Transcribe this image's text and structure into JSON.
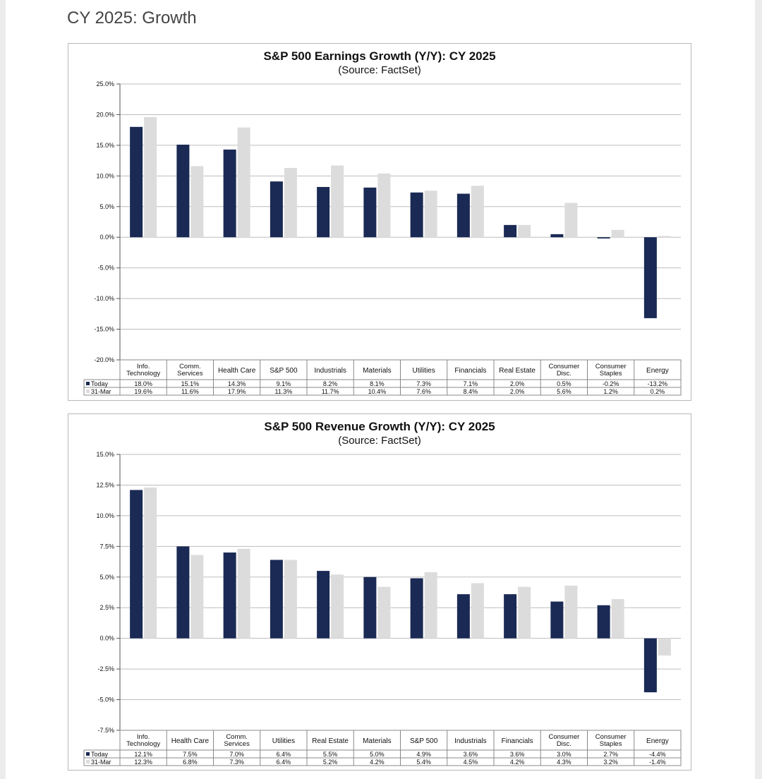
{
  "page": {
    "title": "CY 2025: Growth"
  },
  "colors": {
    "today": "#1a2a55",
    "prior": "#dcdcdc",
    "grid": "#bdbdbd",
    "text": "#111111"
  },
  "chart_data": [
    {
      "type": "bar",
      "title": "S&P 500 Earnings Growth (Y/Y): CY 2025",
      "subtitle": "(Source: FactSet)",
      "categories": [
        [
          "Info.",
          "Technology"
        ],
        [
          "Comm.",
          "Services"
        ],
        [
          "Health Care"
        ],
        [
          "S&P 500"
        ],
        [
          "Industrials"
        ],
        [
          "Materials"
        ],
        [
          "Utilities"
        ],
        [
          "Financials"
        ],
        [
          "Real Estate"
        ],
        [
          "Consumer",
          "Disc."
        ],
        [
          "Consumer",
          "Staples"
        ],
        [
          "Energy"
        ]
      ],
      "series": [
        {
          "name": "Today",
          "values": [
            18.0,
            15.1,
            14.3,
            9.1,
            8.2,
            8.1,
            7.3,
            7.1,
            2.0,
            0.5,
            -0.2,
            -13.2
          ],
          "labels": [
            "18.0%",
            "15.1%",
            "14.3%",
            "9.1%",
            "8.2%",
            "8.1%",
            "7.3%",
            "7.1%",
            "2.0%",
            "0.5%",
            "-0.2%",
            "-13.2%"
          ]
        },
        {
          "name": "31-Mar",
          "values": [
            19.6,
            11.6,
            17.9,
            11.3,
            11.7,
            10.4,
            7.6,
            8.4,
            2.0,
            5.6,
            1.2,
            0.2
          ],
          "labels": [
            "19.6%",
            "11.6%",
            "17.9%",
            "11.3%",
            "11.7%",
            "10.4%",
            "7.6%",
            "8.4%",
            "2.0%",
            "5.6%",
            "1.2%",
            "0.2%"
          ]
        }
      ],
      "ylim": [
        -20,
        25
      ],
      "yticks": [
        25,
        20,
        15,
        10,
        5,
        0,
        -5,
        -10,
        -15,
        -20
      ],
      "ytick_labels": [
        "25.0%",
        "20.0%",
        "15.0%",
        "10.0%",
        "5.0%",
        "0.0%",
        "-5.0%",
        "-10.0%",
        "-15.0%",
        "-20.0%"
      ],
      "grid": true,
      "legend": "data-table-left"
    },
    {
      "type": "bar",
      "title": "S&P 500 Revenue Growth (Y/Y): CY 2025",
      "subtitle": "(Source: FactSet)",
      "categories": [
        [
          "Info.",
          "Technology"
        ],
        [
          "Health Care"
        ],
        [
          "Comm.",
          "Services"
        ],
        [
          "Utilities"
        ],
        [
          "Real Estate"
        ],
        [
          "Materials"
        ],
        [
          "S&P 500"
        ],
        [
          "Industrials"
        ],
        [
          "Financials"
        ],
        [
          "Consumer",
          "Disc."
        ],
        [
          "Consumer",
          "Staples"
        ],
        [
          "Energy"
        ]
      ],
      "series": [
        {
          "name": "Today",
          "values": [
            12.1,
            7.5,
            7.0,
            6.4,
            5.5,
            5.0,
            4.9,
            3.6,
            3.6,
            3.0,
            2.7,
            -4.4
          ],
          "labels": [
            "12.1%",
            "7.5%",
            "7.0%",
            "6.4%",
            "5.5%",
            "5.0%",
            "4.9%",
            "3.6%",
            "3.6%",
            "3.0%",
            "2.7%",
            "-4.4%"
          ]
        },
        {
          "name": "31-Mar",
          "values": [
            12.3,
            6.8,
            7.3,
            6.4,
            5.2,
            4.2,
            5.4,
            4.5,
            4.2,
            4.3,
            3.2,
            -1.4
          ],
          "labels": [
            "12.3%",
            "6.8%",
            "7.3%",
            "6.4%",
            "5.2%",
            "4.2%",
            "5.4%",
            "4.5%",
            "4.2%",
            "4.3%",
            "3.2%",
            "-1.4%"
          ]
        }
      ],
      "ylim": [
        -7.5,
        15
      ],
      "yticks": [
        15,
        12.5,
        10,
        7.5,
        5,
        2.5,
        0,
        -2.5,
        -5,
        -7.5
      ],
      "ytick_labels": [
        "15.0%",
        "12.5%",
        "10.0%",
        "7.5%",
        "5.0%",
        "2.5%",
        "0.0%",
        "-2.5%",
        "-5.0%",
        "-7.5%"
      ],
      "grid": true,
      "legend": "data-table-left"
    }
  ]
}
